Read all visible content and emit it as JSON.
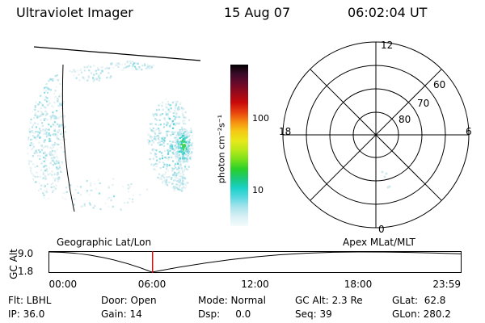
{
  "header": {
    "title": "Ultraviolet Imager",
    "date": "15 Aug 07",
    "time": "06:02:04 UT"
  },
  "colorbar": {
    "unit": "photon cm⁻²s⁻¹",
    "ticks": [
      "100",
      "10"
    ],
    "colors": [
      "#000000",
      "#3a0a2a",
      "#6a0a2a",
      "#9a0a1a",
      "#c80a0a",
      "#e84010",
      "#f58a10",
      "#f5c815",
      "#e8e81a",
      "#b8e81a",
      "#78e01a",
      "#2ad02a",
      "#1ac87a",
      "#1ad2c8",
      "#5ad8e0",
      "#a8e4ec",
      "#d8f0f4",
      "#f4fbfc"
    ]
  },
  "polar": {
    "mlt_labels": {
      "top": "12",
      "left": "18",
      "right": "6",
      "bottom": "0"
    },
    "lat_labels": [
      "60",
      "70",
      "80"
    ]
  },
  "timeline": {
    "left_title": "Geographic Lat/Lon",
    "right_title": "Apex MLat/MLT",
    "axis_label": "GC Alt",
    "y_ticks": [
      "9.0",
      "1.8"
    ],
    "x_ticks": [
      "00:00",
      "06:00",
      "12:00",
      "18:00",
      "23:59"
    ],
    "marker_time": "06:02:04",
    "altitude_curve": [
      {
        "hour": 0,
        "alt": 9.0
      },
      {
        "hour": 6.0,
        "alt": 1.8
      },
      {
        "hour": 18.0,
        "alt": 9.0
      },
      {
        "hour": 24.0,
        "alt": 8.3
      }
    ]
  },
  "status": {
    "flt": "Flt: LBHL",
    "ip": "IP: 36.0",
    "door": "Door: Open",
    "gain": "Gain: 14",
    "mode": "Mode: Normal",
    "dsp": "Dsp:     0.0",
    "gcalt": "GC Alt: 2.3 Re",
    "seq": "Seq: 39",
    "glat": "GLat:  62.8",
    "glon": "GLon: 280.2"
  }
}
